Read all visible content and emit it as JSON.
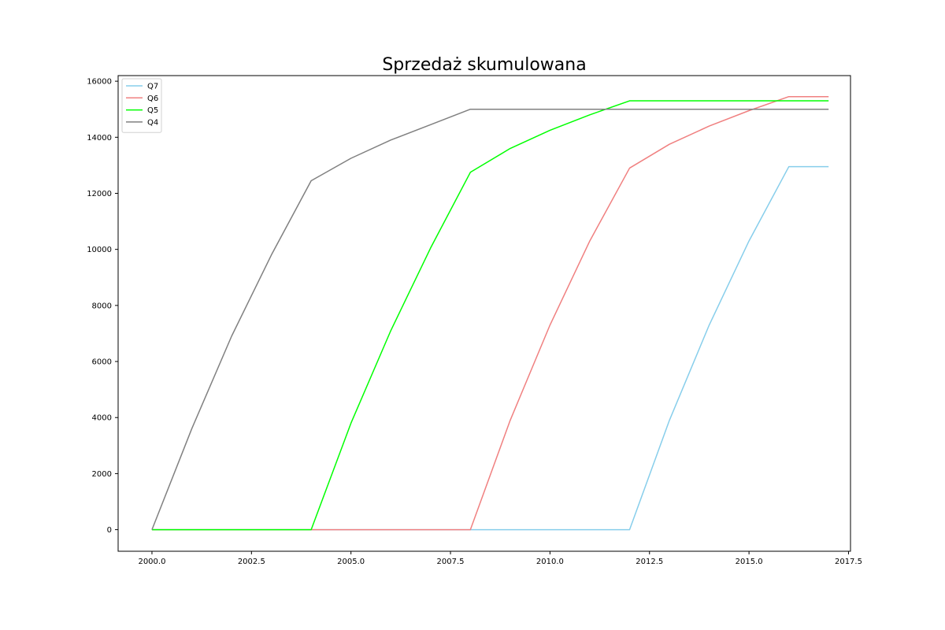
{
  "chart_data": {
    "type": "line",
    "title": "Sprzedaż skumulowana",
    "xlabel": "",
    "ylabel": "",
    "xlim": [
      1999.15,
      2017.55
    ],
    "ylim": [
      -770,
      16200
    ],
    "x_ticks": [
      2000.0,
      2002.5,
      2005.0,
      2007.5,
      2010.0,
      2012.5,
      2015.0,
      2017.5
    ],
    "x_tick_labels": [
      "2000.0",
      "2002.5",
      "2005.0",
      "2007.5",
      "2010.0",
      "2012.5",
      "2015.0",
      "2017.5"
    ],
    "y_ticks": [
      0,
      2000,
      4000,
      6000,
      8000,
      10000,
      12000,
      14000,
      16000
    ],
    "y_tick_labels": [
      "0",
      "2000",
      "4000",
      "6000",
      "8000",
      "10000",
      "12000",
      "14000",
      "16000"
    ],
    "grid": false,
    "legend_position": "top-left",
    "x": [
      2000,
      2001,
      2002,
      2003,
      2004,
      2005,
      2006,
      2007,
      2008,
      2009,
      2010,
      2011,
      2012,
      2013,
      2014,
      2015,
      2016,
      2017
    ],
    "series": [
      {
        "name": "Q7",
        "color": "#87ceeb",
        "values": [
          0,
          0,
          0,
          0,
          0,
          0,
          0,
          0,
          0,
          0,
          0,
          0,
          0,
          3900,
          7300,
          10300,
          12950,
          12950
        ]
      },
      {
        "name": "Q6",
        "color": "#f08080",
        "values": [
          0,
          0,
          0,
          0,
          0,
          0,
          0,
          0,
          0,
          3900,
          7300,
          10300,
          12900,
          13750,
          14400,
          14950,
          15450,
          15450
        ]
      },
      {
        "name": "Q5",
        "color": "#00ff00",
        "values": [
          0,
          0,
          0,
          0,
          0,
          3800,
          7100,
          10050,
          12750,
          13600,
          14250,
          14800,
          15300,
          15300,
          15300,
          15300,
          15300,
          15300
        ]
      },
      {
        "name": "Q4",
        "color": "#808080",
        "values": [
          0,
          3600,
          6900,
          9800,
          12450,
          13250,
          13900,
          14450,
          15000,
          15000,
          15000,
          15000,
          15000,
          15000,
          15000,
          15000,
          15000,
          15000
        ]
      }
    ]
  }
}
